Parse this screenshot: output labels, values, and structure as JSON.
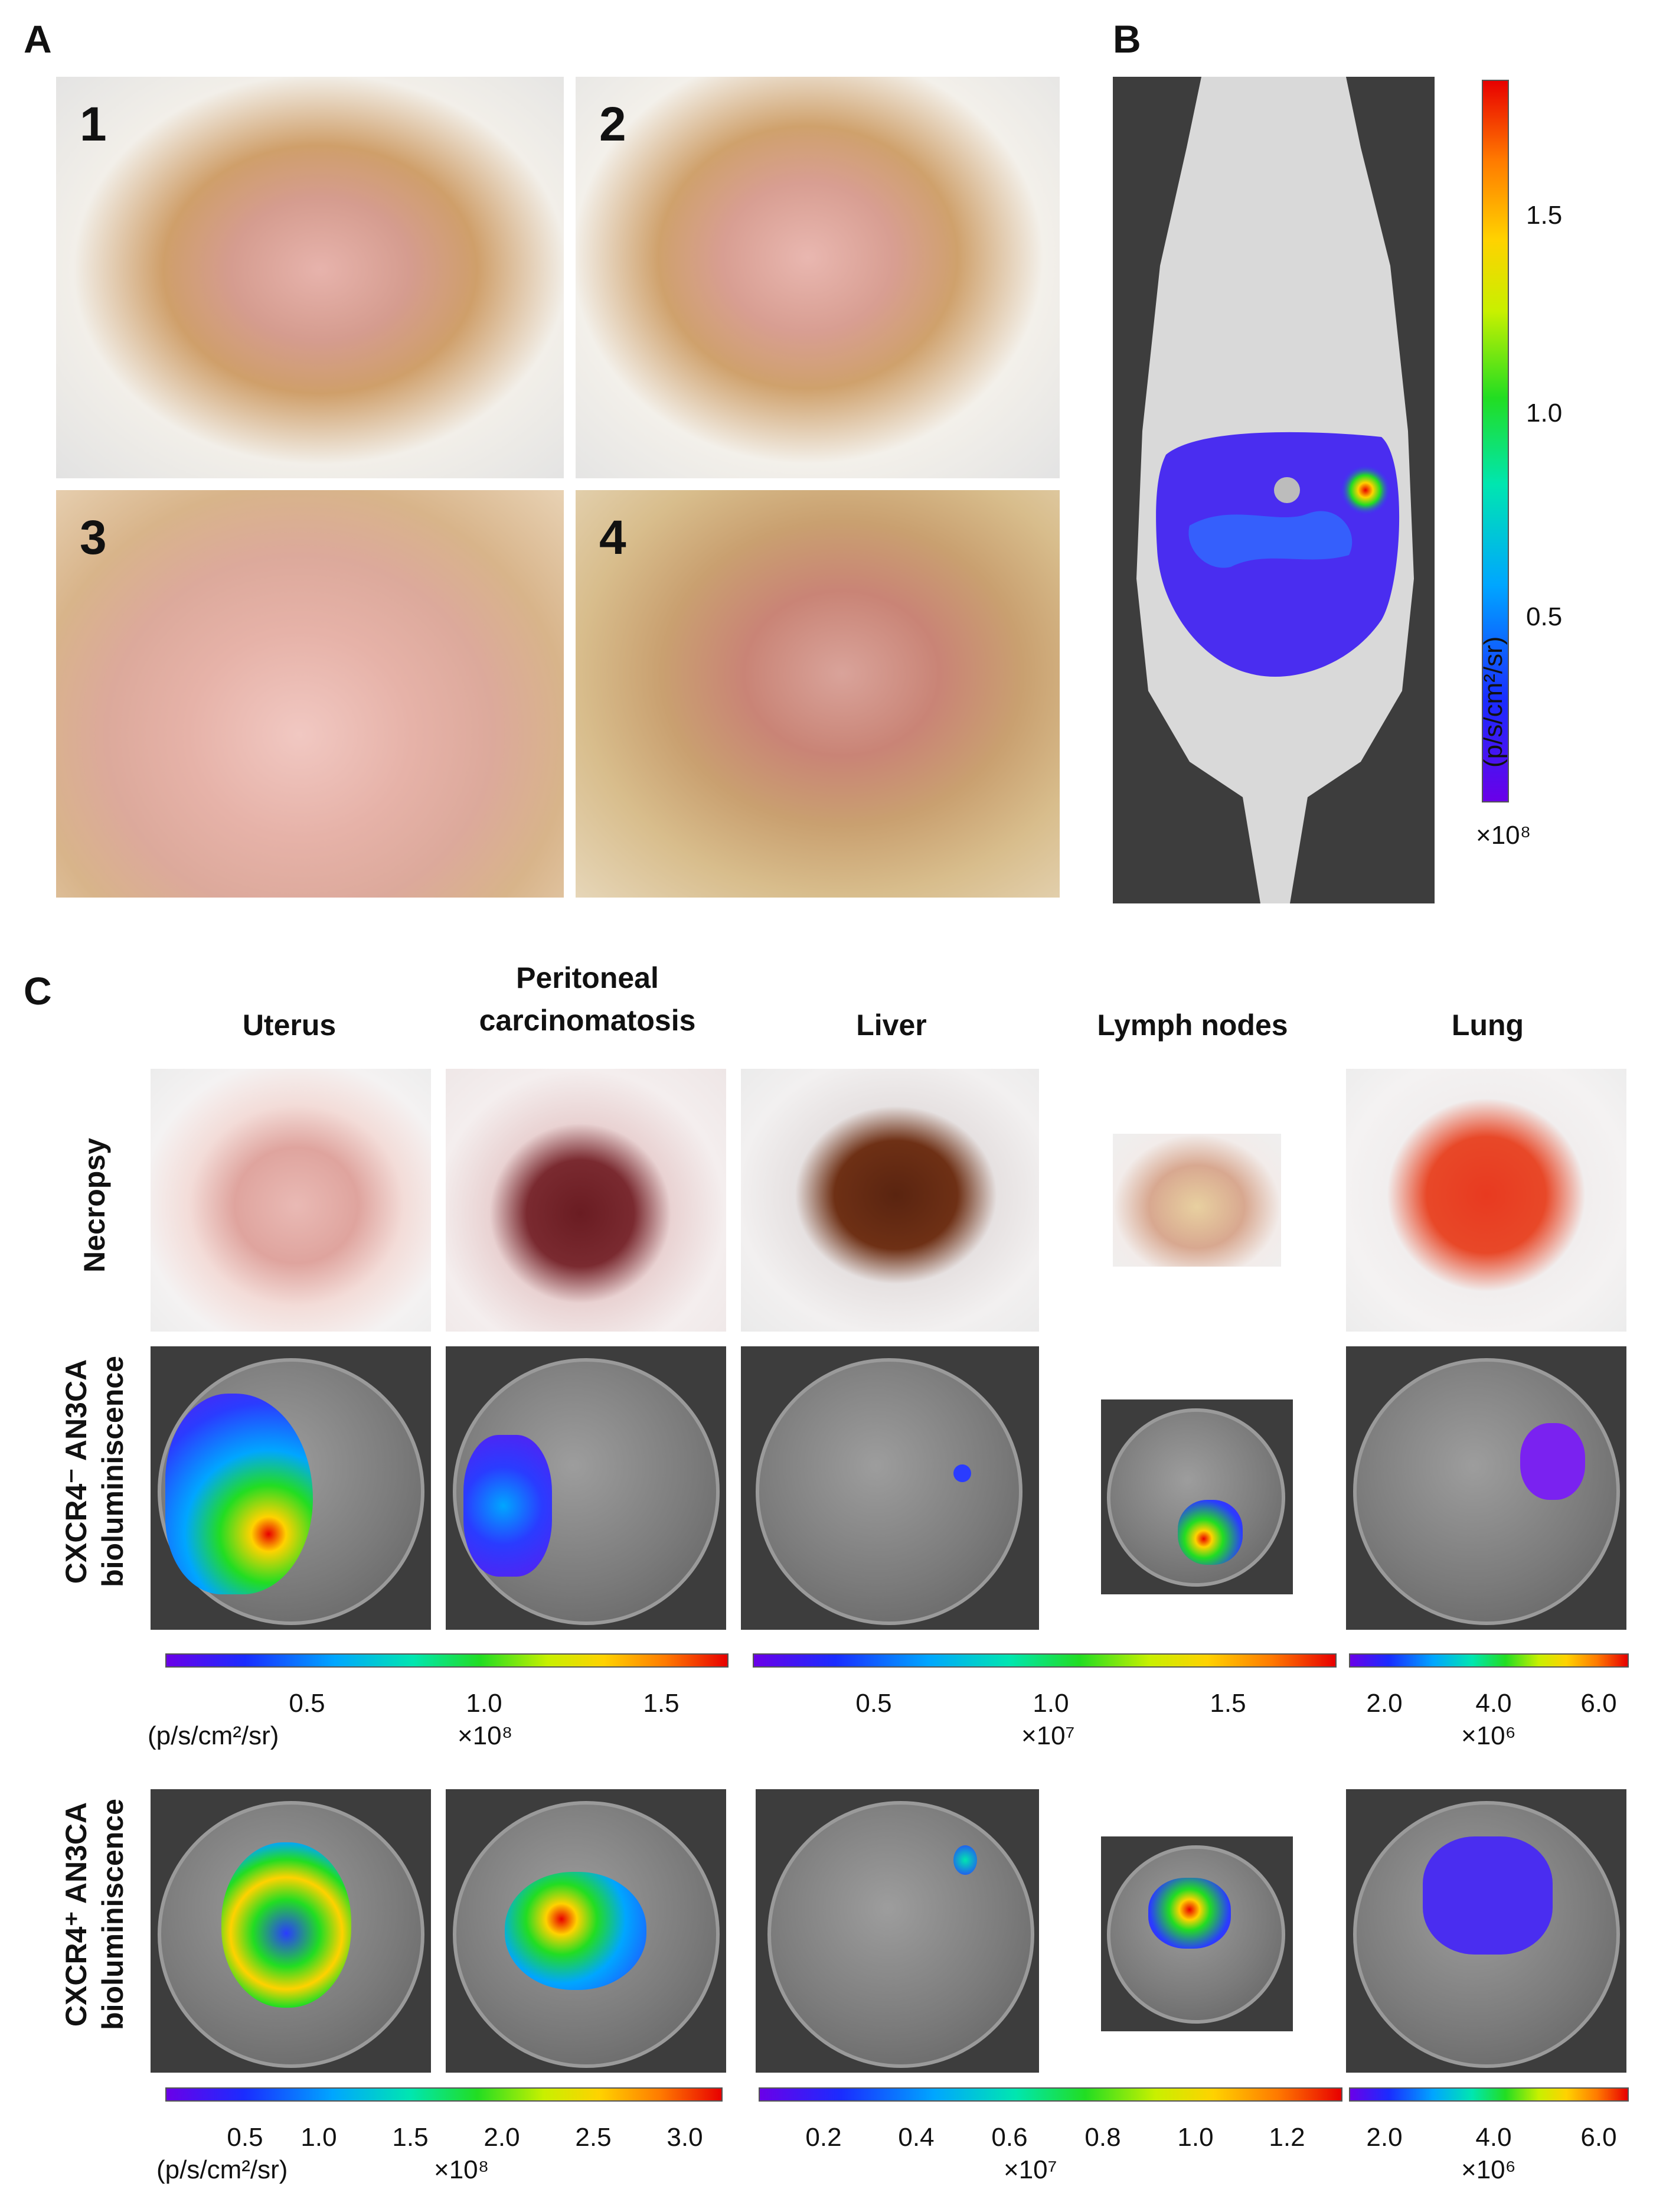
{
  "panel_letters": {
    "a": "A",
    "b": "B",
    "c": "C"
  },
  "panel_a": {
    "step_numbers": [
      "1",
      "2",
      "3",
      "4"
    ]
  },
  "panel_b": {
    "colorbar_ticks": [
      "1.5",
      "1.0",
      "0.5"
    ],
    "scale": "×10⁸",
    "unit": "(p/s/cm²/sr)"
  },
  "panel_c": {
    "column_headers": [
      "Uterus",
      "Peritoneal carcinomatosis",
      "Liver",
      "Lymph nodes",
      "Lung"
    ],
    "row_labels": {
      "necropsy": "Necropsy",
      "cxcr4_neg": "CXCR4⁻ AN3CA bioluminiscence",
      "cxcr4_pos": "CXCR4⁺ AN3CA bioluminiscence"
    },
    "colorbars_row1": [
      {
        "ticks": [
          "0.5",
          "1.0",
          "1.5"
        ],
        "scale": "×10⁸",
        "unit": "(p/s/cm²/sr)"
      },
      {
        "ticks": [
          "0.5",
          "1.0",
          "1.5"
        ],
        "scale": "×10⁷"
      },
      {
        "ticks": [
          "2.0",
          "4.0",
          "6.0"
        ],
        "scale": "×10⁶"
      }
    ],
    "colorbars_row2": [
      {
        "ticks": [
          "0.5",
          "1.0",
          "1.5",
          "2.0",
          "2.5",
          "3.0"
        ],
        "scale": "×10⁸",
        "unit": "(p/s/cm²/sr)"
      },
      {
        "ticks": [
          "0.2",
          "0.4",
          "0.6",
          "0.8",
          "1.0",
          "1.2"
        ],
        "scale": "×10⁷"
      },
      {
        "ticks": [
          "2.0",
          "4.0",
          "6.0"
        ],
        "scale": "×10⁶"
      }
    ]
  }
}
